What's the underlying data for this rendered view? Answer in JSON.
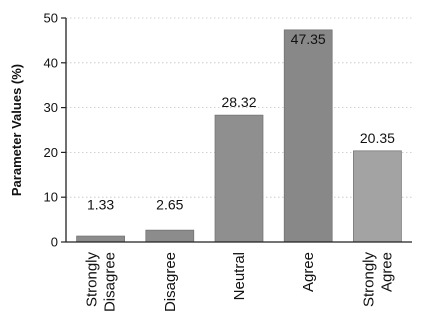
{
  "chart_data": {
    "type": "bar",
    "title": "",
    "xlabel": "",
    "ylabel": "Parameter Values (%)",
    "ylim": [
      0,
      50
    ],
    "yticks": [
      0,
      10,
      20,
      30,
      40,
      50
    ],
    "grid": "horizontal-dashed",
    "legend": "none",
    "categories": [
      [
        "Strongly",
        "Disagree"
      ],
      [
        "Disagree"
      ],
      [
        "Neutral"
      ],
      [
        "Agree"
      ],
      [
        "Strongly",
        "Agree"
      ]
    ],
    "values": [
      1.33,
      2.65,
      28.32,
      47.35,
      20.35
    ],
    "data_labels": [
      "1.33",
      "2.65",
      "28.32",
      "47.35",
      "20.35"
    ],
    "bar_colors": [
      "#8c8c8c",
      "#8c8c8c",
      "#8f8f8f",
      "#888888",
      "#a3a3a3"
    ]
  }
}
